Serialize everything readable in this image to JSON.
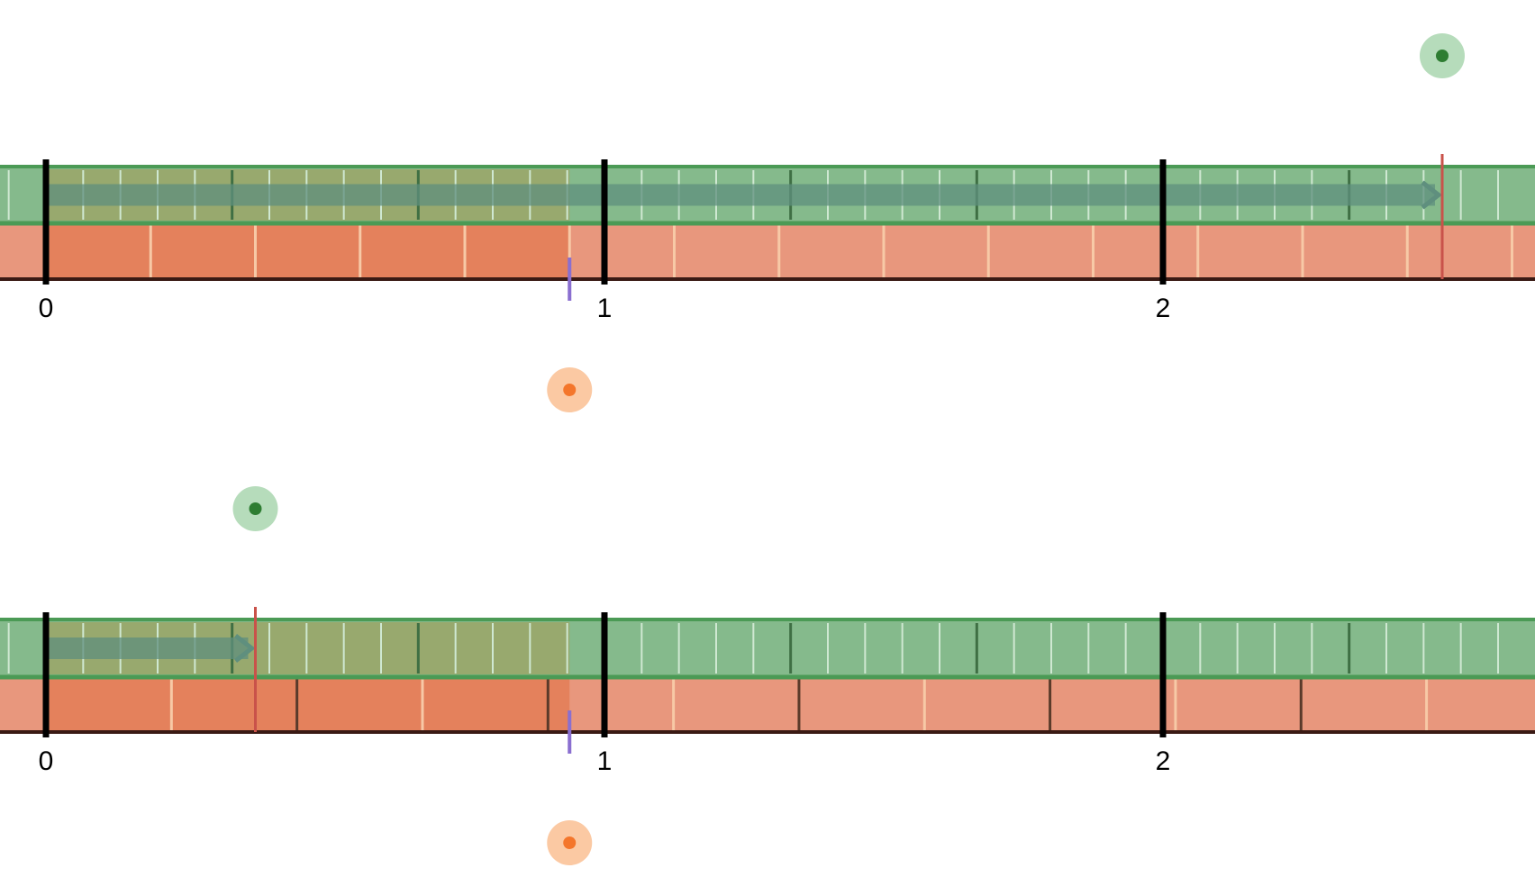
{
  "colors": {
    "green_bar": "#85ba8c",
    "green_border": "#4b9a55",
    "green_dark_tick": "#3f6f44",
    "green_light_tick": "#cfe8d2",
    "orange_bar": "#e8977d",
    "orange_bar_dark": "#e4815c",
    "orange_tick": "#f7c9a6",
    "orange_dark_tick": "#5a3a2a",
    "axis": "#3a1a14",
    "integer_tick": "#000000",
    "arrow": "#5f8f7e",
    "red_marker": "#c9524a",
    "purple_marker": "#8a6fd0",
    "green_handle": "#2e7d32",
    "green_halo": "#b6dcbb",
    "orange_handle": "#f4762b",
    "orange_halo": "#fbc9a3"
  },
  "number_lines": [
    {
      "name": "top",
      "tick_labels": [
        "0",
        "1",
        "2"
      ],
      "green_bar": {
        "partition_denominator": 15,
        "product_value": 2.5,
        "arrow_end_value": 2.5
      },
      "orange_bar": {
        "partition_denominator": 3.2,
        "shaded_value": 0.9375
      },
      "green_handle_value": 2.5,
      "orange_handle_value": 0.9375
    },
    {
      "name": "bottom",
      "tick_labels": [
        "0",
        "1",
        "2"
      ],
      "green_bar": {
        "partition_denominator": 15,
        "product_value": 0.375,
        "arrow_end_value": 0.375
      },
      "orange_bar": {
        "partition_denominator": 2.67,
        "shaded_value": 0.9375
      },
      "green_handle_value": 0.375,
      "orange_handle_value": 0.9375
    }
  ]
}
